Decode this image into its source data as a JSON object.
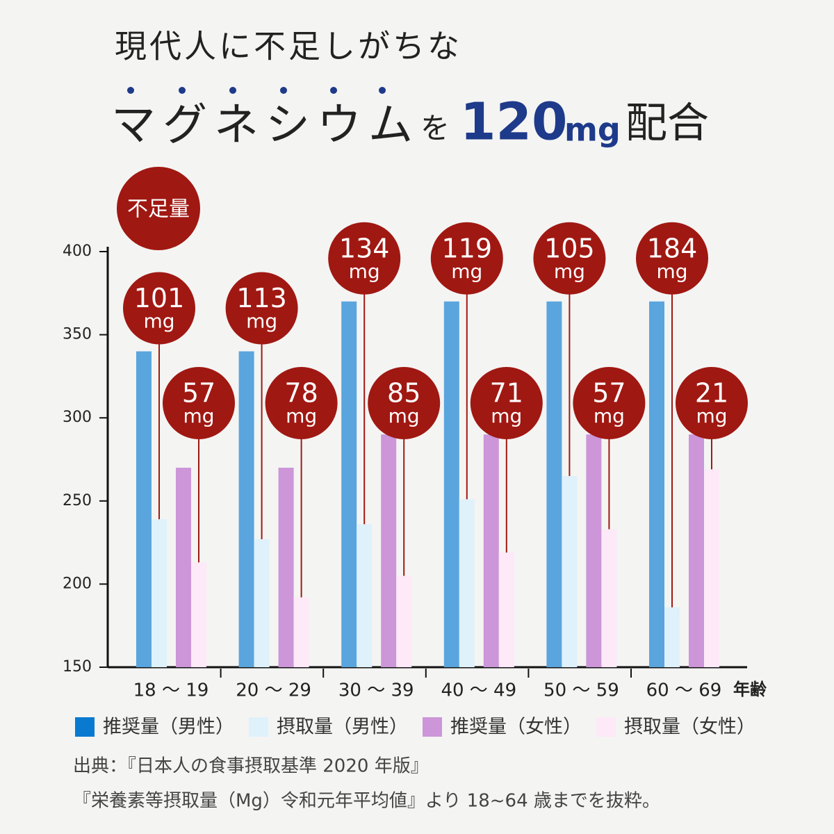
{
  "chart_data": {
    "type": "bar",
    "title": "現代人に不足しがちな",
    "headline": {
      "subject": "マグネシウム",
      "particle": "を",
      "amount": "120",
      "unit": "mg",
      "verb": "配合"
    },
    "categories": [
      "18 ～ 19",
      "20 ～ 29",
      "30 ～ 39",
      "40 ～ 49",
      "50 ～ 59",
      "60 ～ 69"
    ],
    "x_label": "年齢",
    "series": [
      {
        "name": "推奨量（男性）",
        "color": "#5aa5dd",
        "legend_color": "#0a7ad0",
        "values": [
          340,
          340,
          370,
          370,
          370,
          370
        ]
      },
      {
        "name": "摂取量（男性）",
        "color": "#dff1fb",
        "legend_color": "#dff1fb",
        "values": [
          239,
          227,
          236,
          251,
          265,
          186
        ]
      },
      {
        "name": "推奨量（女性）",
        "color": "#cc96d8",
        "legend_color": "#cc96d8",
        "values": [
          270,
          270,
          290,
          290,
          290,
          290
        ]
      },
      {
        "name": "摂取量（女性）",
        "color": "#fde9f8",
        "legend_color": "#fde9f8",
        "values": [
          213,
          192,
          205,
          219,
          233,
          269
        ]
      }
    ],
    "shortfall": {
      "label": "不足量",
      "unit": "mg",
      "color": "#a01812",
      "male": [
        101,
        113,
        134,
        119,
        105,
        184
      ],
      "female": [
        57,
        78,
        85,
        71,
        57,
        21
      ]
    },
    "ylim": [
      150,
      400
    ],
    "yticks": [
      150,
      200,
      250,
      300,
      350,
      400
    ],
    "source": [
      "出典：『日本人の食事摂取基準 2020 年版』",
      "『栄養素等摂取量（Mg）令和元年平均値』より 18~64 歳までを抜粋。"
    ]
  }
}
